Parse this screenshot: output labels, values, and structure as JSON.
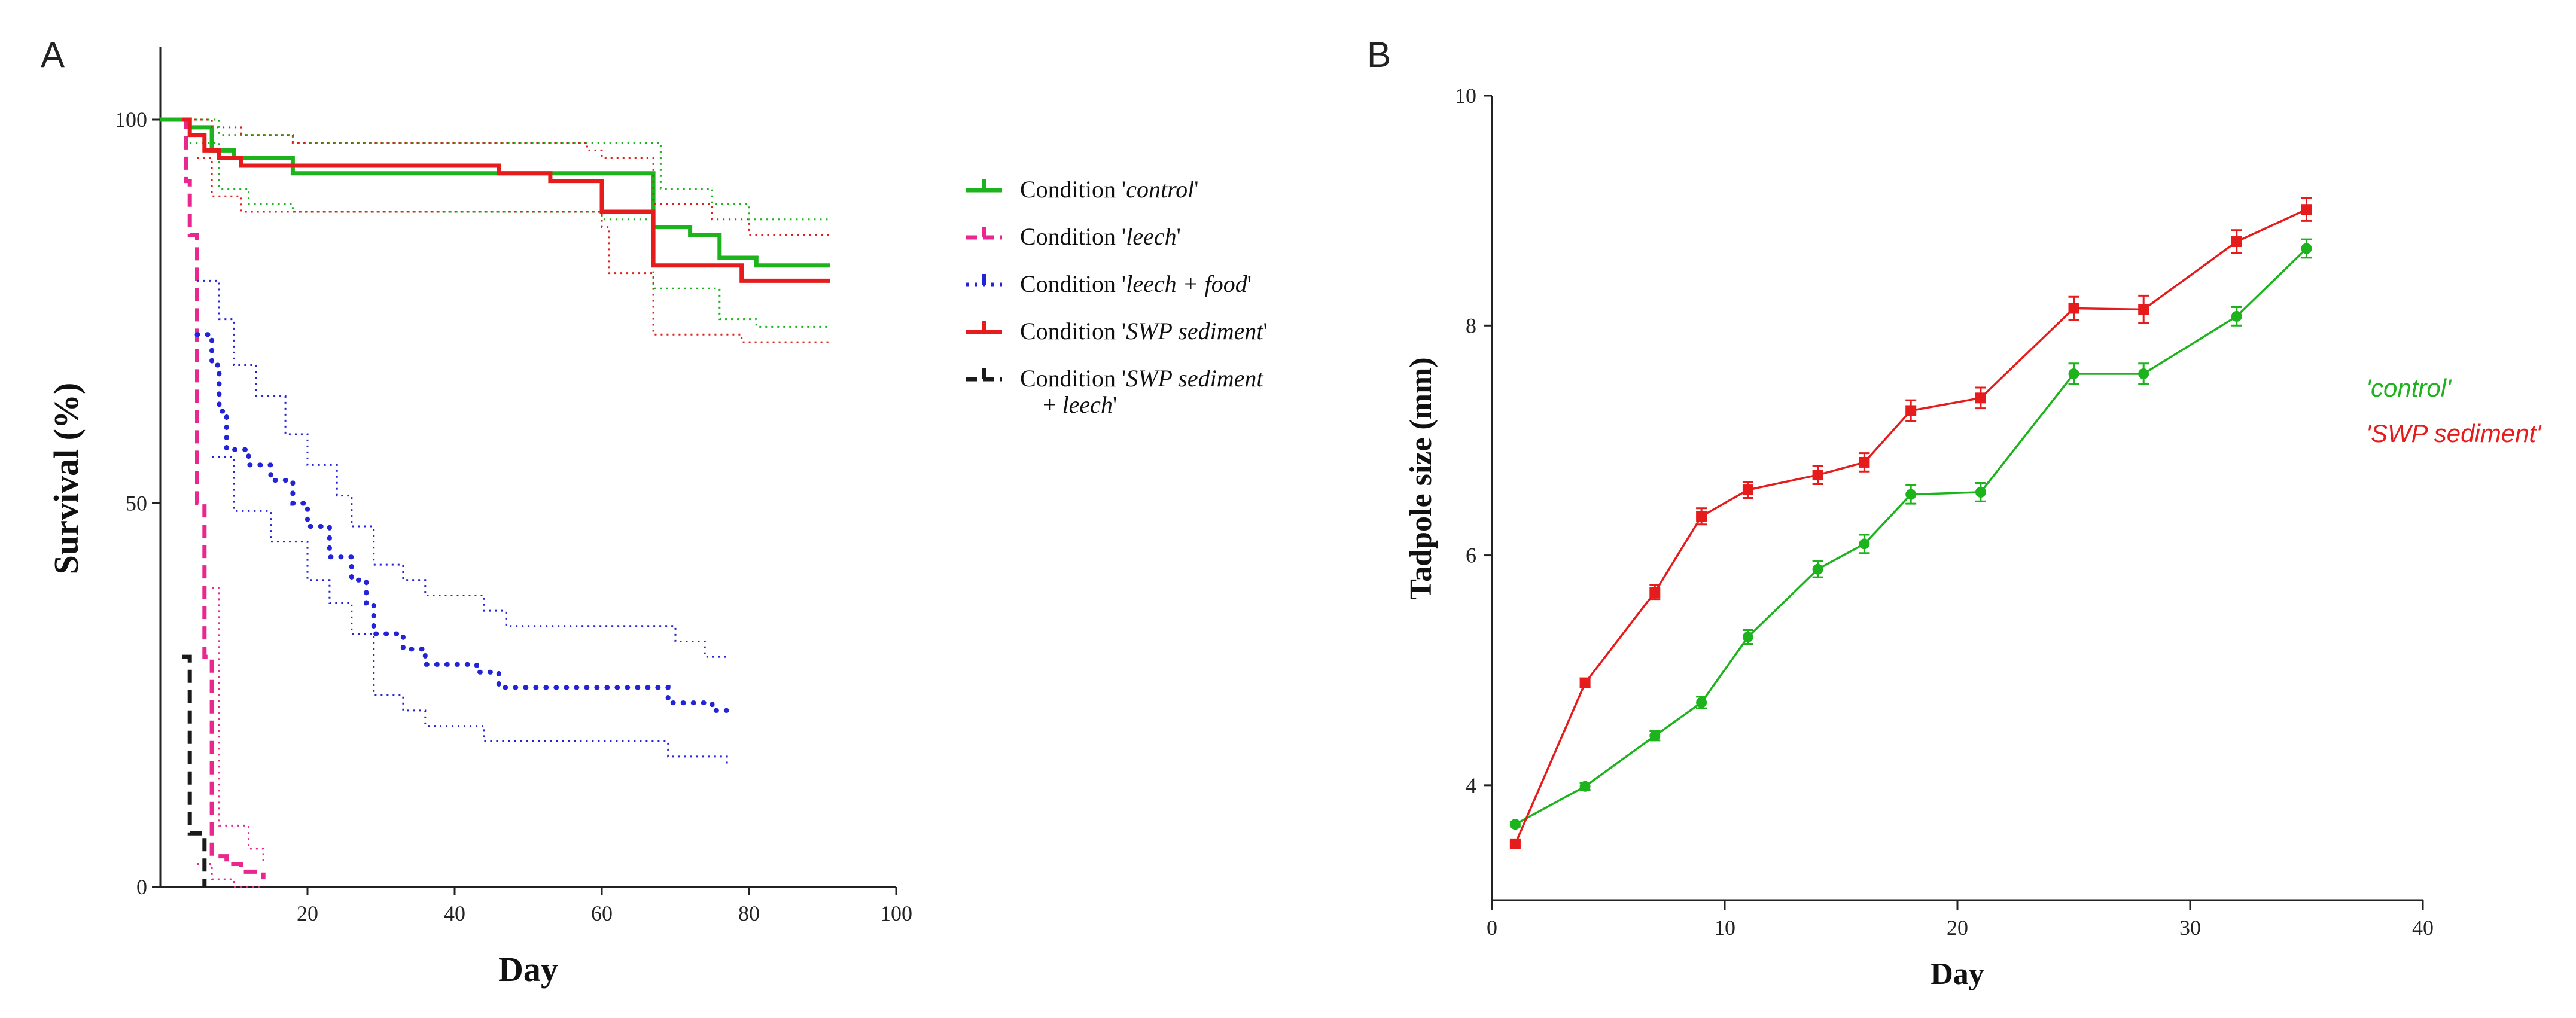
{
  "chart_data": [
    {
      "panel": "A",
      "type": "line",
      "subtype": "kaplan-meier survival with confidence bands",
      "title": "",
      "xlabel": "Day",
      "ylabel": "Survival (%)",
      "xlim": [
        0,
        100
      ],
      "ylim": [
        0,
        110
      ],
      "xticks": [
        20,
        40,
        60,
        80,
        100
      ],
      "yticks": [
        0,
        50,
        100
      ],
      "legend_position": "right",
      "series": [
        {
          "name": "Condition 'control'",
          "legend_prefix": "Condition '",
          "legend_italic": "control",
          "legend_suffix": "'",
          "color": "#1db31d",
          "style": "solid",
          "steps": [
            [
              0,
              100
            ],
            [
              4,
              99
            ],
            [
              7,
              96
            ],
            [
              10,
              95
            ],
            [
              18,
              93
            ],
            [
              60,
              93
            ],
            [
              67,
              86
            ],
            [
              72,
              85
            ],
            [
              76,
              82
            ],
            [
              81,
              81
            ],
            [
              91,
              81
            ]
          ],
          "ci_upper": [
            [
              4,
              100
            ],
            [
              8,
              98
            ],
            [
              18,
              97
            ],
            [
              67,
              97
            ],
            [
              68,
              91
            ],
            [
              75,
              89
            ],
            [
              80,
              87
            ],
            [
              91,
              87
            ]
          ],
          "ci_lower": [
            [
              4,
              97
            ],
            [
              8,
              91
            ],
            [
              12,
              89
            ],
            [
              18,
              88
            ],
            [
              60,
              87
            ],
            [
              67,
              78
            ],
            [
              76,
              74
            ],
            [
              81,
              73
            ],
            [
              91,
              73
            ]
          ]
        },
        {
          "name": "Condition 'leech'",
          "legend_prefix": "Condition '",
          "legend_italic": "leech",
          "legend_suffix": "'",
          "color": "#e8288f",
          "style": "dashed",
          "steps": [
            [
              3,
              100
            ],
            [
              3.5,
              92
            ],
            [
              4,
              85
            ],
            [
              5,
              50
            ],
            [
              6,
              30
            ],
            [
              7,
              4
            ],
            [
              9,
              3
            ],
            [
              11,
              2
            ],
            [
              14,
              1
            ]
          ],
          "ci_upper": [
            [
              7,
              39
            ],
            [
              8,
              8
            ],
            [
              12,
              5
            ],
            [
              14,
              3
            ]
          ],
          "ci_lower": [
            [
              5,
              3
            ],
            [
              7,
              1
            ],
            [
              10,
              0
            ],
            [
              14,
              0
            ]
          ]
        },
        {
          "name": "Condition 'leech + food'",
          "legend_prefix": "Condition '",
          "legend_italic": "leech + food",
          "legend_suffix": "'",
          "color": "#2323d8",
          "style": "dotted",
          "steps": [
            [
              5,
              72
            ],
            [
              7,
              68
            ],
            [
              8,
              62
            ],
            [
              9,
              57
            ],
            [
              12,
              55
            ],
            [
              15,
              53
            ],
            [
              18,
              50
            ],
            [
              20,
              47
            ],
            [
              23,
              43
            ],
            [
              26,
              40
            ],
            [
              28,
              37
            ],
            [
              29,
              33
            ],
            [
              33,
              31
            ],
            [
              36,
              29
            ],
            [
              43,
              28
            ],
            [
              46,
              26
            ],
            [
              59,
              26
            ],
            [
              68,
              26
            ],
            [
              69,
              24
            ],
            [
              75,
              23
            ],
            [
              77,
              23
            ]
          ],
          "ci_upper": [
            [
              5,
              79
            ],
            [
              8,
              74
            ],
            [
              10,
              68
            ],
            [
              13,
              64
            ],
            [
              17,
              59
            ],
            [
              20,
              55
            ],
            [
              24,
              51
            ],
            [
              26,
              47
            ],
            [
              29,
              42
            ],
            [
              33,
              40
            ],
            [
              36,
              38
            ],
            [
              44,
              36
            ],
            [
              47,
              34
            ],
            [
              60,
              34
            ],
            [
              68,
              34
            ],
            [
              70,
              32
            ],
            [
              74,
              30
            ],
            [
              77,
              30
            ]
          ],
          "ci_lower": [
            [
              7,
              56
            ],
            [
              10,
              49
            ],
            [
              15,
              45
            ],
            [
              20,
              40
            ],
            [
              23,
              37
            ],
            [
              26,
              33
            ],
            [
              29,
              25
            ],
            [
              33,
              23
            ],
            [
              36,
              21
            ],
            [
              44,
              19
            ],
            [
              47,
              19
            ],
            [
              68,
              19
            ],
            [
              69,
              17
            ],
            [
              77,
              16
            ]
          ]
        },
        {
          "name": "Condition 'SWP sediment'",
          "legend_prefix": "Condition '",
          "legend_italic": "SWP sediment",
          "legend_suffix": "'",
          "color": "#e61c1c",
          "style": "solid",
          "steps": [
            [
              3,
              100
            ],
            [
              4,
              98
            ],
            [
              6,
              96
            ],
            [
              8,
              95
            ],
            [
              11,
              94
            ],
            [
              18,
              94
            ],
            [
              46,
              93
            ],
            [
              52,
              93
            ],
            [
              53,
              92
            ],
            [
              58,
              92
            ],
            [
              60,
              88
            ],
            [
              67,
              81
            ],
            [
              74,
              81
            ],
            [
              79,
              79
            ],
            [
              91,
              79
            ]
          ],
          "ci_upper": [
            [
              3,
              100
            ],
            [
              7,
              99
            ],
            [
              11,
              98
            ],
            [
              18,
              97
            ],
            [
              58,
              96
            ],
            [
              60,
              95
            ],
            [
              67,
              89
            ],
            [
              75,
              87
            ],
            [
              80,
              85
            ],
            [
              91,
              85
            ]
          ],
          "ci_lower": [
            [
              5,
              95
            ],
            [
              7,
              90
            ],
            [
              11,
              88
            ],
            [
              46,
              88
            ],
            [
              60,
              86
            ],
            [
              61,
              80
            ],
            [
              67,
              72
            ],
            [
              79,
              71
            ],
            [
              91,
              71
            ]
          ]
        },
        {
          "name": "Condition 'SWP sediment + leech'",
          "legend_prefix": "Condition '",
          "legend_italic": "SWP sediment",
          "legend_suffix": "",
          "legend_line2_prefix": "+ ",
          "legend_line2_italic": "leech",
          "legend_line2_suffix": "'",
          "color": "#1a1a1a",
          "style": "dashed",
          "steps": [
            [
              3,
              30
            ],
            [
              4,
              7
            ],
            [
              5,
              7
            ],
            [
              6,
              0
            ]
          ]
        }
      ]
    },
    {
      "panel": "B",
      "type": "line",
      "title": "",
      "xlabel": "Day",
      "ylabel": "Tadpole size (mm)",
      "xlim": [
        0,
        40
      ],
      "ylim": [
        3,
        10
      ],
      "xticks": [
        0,
        10,
        20,
        30,
        40
      ],
      "yticks": [
        4,
        6,
        8,
        10
      ],
      "legend_position": "right",
      "series": [
        {
          "name": "'control'",
          "color": "#1db31d",
          "marker": "circle",
          "x": [
            1,
            4,
            7,
            9,
            11,
            14,
            16,
            18,
            21,
            25,
            28,
            32,
            35
          ],
          "y": [
            3.66,
            3.99,
            4.43,
            4.72,
            5.29,
            5.88,
            6.1,
            6.53,
            6.55,
            7.58,
            7.58,
            8.08,
            8.67
          ],
          "err": [
            0.02,
            0.03,
            0.04,
            0.05,
            0.06,
            0.07,
            0.08,
            0.08,
            0.08,
            0.09,
            0.09,
            0.08,
            0.08
          ]
        },
        {
          "name": "'SWP sediment'",
          "color": "#e61c1c",
          "marker": "square",
          "x": [
            1,
            4,
            7,
            9,
            11,
            14,
            16,
            18,
            21,
            25,
            28,
            32,
            35
          ],
          "y": [
            3.49,
            4.89,
            5.68,
            6.34,
            6.57,
            6.7,
            6.81,
            7.26,
            7.37,
            8.15,
            8.14,
            8.73,
            9.01
          ],
          "err": [
            0.02,
            0.04,
            0.06,
            0.07,
            0.07,
            0.08,
            0.08,
            0.09,
            0.09,
            0.1,
            0.12,
            0.1,
            0.1
          ]
        }
      ]
    }
  ]
}
